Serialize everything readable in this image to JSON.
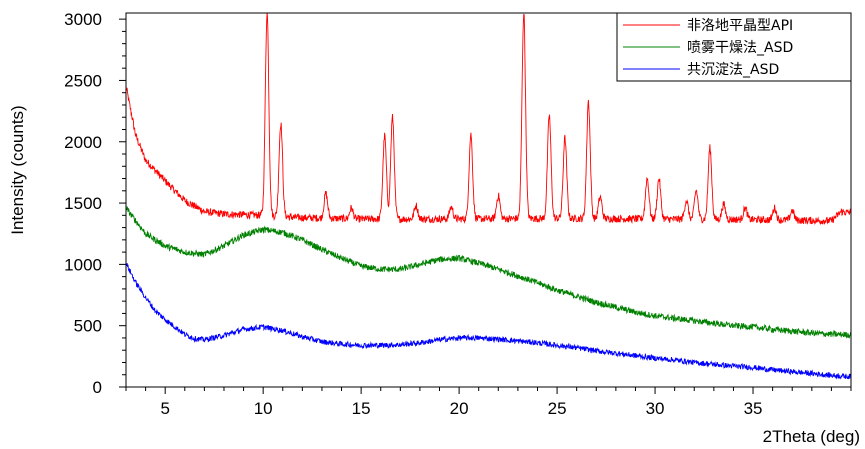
{
  "chart_data": {
    "type": "line",
    "xlabel": "2Theta (deg)",
    "ylabel": "Intensity (counts)",
    "xlim": [
      3,
      40
    ],
    "ylim": [
      0,
      3050
    ],
    "x_ticks": [
      5,
      10,
      15,
      20,
      25,
      30,
      35
    ],
    "y_ticks": [
      0,
      500,
      1000,
      1500,
      2000,
      2500,
      3000
    ],
    "legend_position": "top-right",
    "grid": false,
    "series": [
      {
        "name": "非洛地平晶型API",
        "color": "#ff0000",
        "baseline": [
          [
            3,
            2450
          ],
          [
            3.5,
            2050
          ],
          [
            4,
            1850
          ],
          [
            5,
            1680
          ],
          [
            6,
            1520
          ],
          [
            7,
            1430
          ],
          [
            8,
            1410
          ],
          [
            9,
            1405
          ],
          [
            10,
            1400
          ],
          [
            12,
            1380
          ],
          [
            15,
            1370
          ],
          [
            20,
            1370
          ],
          [
            25,
            1375
          ],
          [
            30,
            1370
          ],
          [
            35,
            1365
          ],
          [
            39,
            1355
          ],
          [
            39.5,
            1430
          ],
          [
            40,
            1420
          ]
        ],
        "peaks": [
          [
            10.2,
            3050
          ],
          [
            10.9,
            2150
          ],
          [
            13.2,
            1580
          ],
          [
            14.5,
            1460
          ],
          [
            16.2,
            2050
          ],
          [
            16.6,
            2200
          ],
          [
            17.8,
            1480
          ],
          [
            19.6,
            1470
          ],
          [
            20.6,
            2060
          ],
          [
            22,
            1560
          ],
          [
            23.3,
            3050
          ],
          [
            24.6,
            2220
          ],
          [
            25.4,
            2030
          ],
          [
            26.6,
            2330
          ],
          [
            27.2,
            1550
          ],
          [
            29.6,
            1700
          ],
          [
            30.2,
            1700
          ],
          [
            31.6,
            1520
          ],
          [
            32.1,
            1600
          ],
          [
            32.8,
            1950
          ],
          [
            33.5,
            1490
          ],
          [
            34.6,
            1460
          ],
          [
            36.1,
            1460
          ],
          [
            37,
            1440
          ]
        ],
        "noise": 30
      },
      {
        "name": "喷雾干燥法_ASD",
        "color": "#008000",
        "baseline": [
          [
            3,
            1460
          ],
          [
            4,
            1250
          ],
          [
            5,
            1150
          ],
          [
            6,
            1100
          ],
          [
            7,
            1080
          ],
          [
            8,
            1150
          ],
          [
            9,
            1240
          ],
          [
            10,
            1285
          ],
          [
            11,
            1260
          ],
          [
            12,
            1200
          ],
          [
            13,
            1120
          ],
          [
            14,
            1050
          ],
          [
            15,
            985
          ],
          [
            16,
            960
          ],
          [
            17,
            960
          ],
          [
            18,
            1000
          ],
          [
            19,
            1040
          ],
          [
            20,
            1050
          ],
          [
            21,
            1010
          ],
          [
            22,
            960
          ],
          [
            23,
            905
          ],
          [
            24,
            850
          ],
          [
            25,
            790
          ],
          [
            26,
            740
          ],
          [
            27,
            690
          ],
          [
            28,
            650
          ],
          [
            29,
            610
          ],
          [
            30,
            580
          ],
          [
            31,
            560
          ],
          [
            32,
            540
          ],
          [
            33,
            520
          ],
          [
            34,
            500
          ],
          [
            35,
            490
          ],
          [
            36,
            470
          ],
          [
            37,
            455
          ],
          [
            38,
            440
          ],
          [
            39,
            430
          ],
          [
            40,
            425
          ]
        ],
        "peaks": [],
        "noise": 25
      },
      {
        "name": "共沉淀法_ASD",
        "color": "#0000ff",
        "baseline": [
          [
            3,
            1010
          ],
          [
            3.5,
            850
          ],
          [
            4,
            730
          ],
          [
            4.5,
            620
          ],
          [
            5,
            550
          ],
          [
            5.5,
            490
          ],
          [
            6,
            430
          ],
          [
            6.5,
            395
          ],
          [
            7,
            385
          ],
          [
            8,
            420
          ],
          [
            9,
            470
          ],
          [
            10,
            490
          ],
          [
            11,
            460
          ],
          [
            12,
            410
          ],
          [
            13,
            370
          ],
          [
            14,
            350
          ],
          [
            15,
            340
          ],
          [
            16,
            340
          ],
          [
            17,
            345
          ],
          [
            18,
            360
          ],
          [
            19,
            385
          ],
          [
            20,
            400
          ],
          [
            21,
            400
          ],
          [
            22,
            390
          ],
          [
            23,
            375
          ],
          [
            24,
            360
          ],
          [
            25,
            340
          ],
          [
            26,
            320
          ],
          [
            27,
            295
          ],
          [
            28,
            275
          ],
          [
            29,
            255
          ],
          [
            30,
            235
          ],
          [
            31,
            220
          ],
          [
            32,
            200
          ],
          [
            33,
            185
          ],
          [
            34,
            170
          ],
          [
            35,
            160
          ],
          [
            36,
            140
          ],
          [
            37,
            125
          ],
          [
            38,
            110
          ],
          [
            39,
            95
          ],
          [
            40,
            85
          ]
        ],
        "peaks": [],
        "noise": 22
      }
    ]
  }
}
